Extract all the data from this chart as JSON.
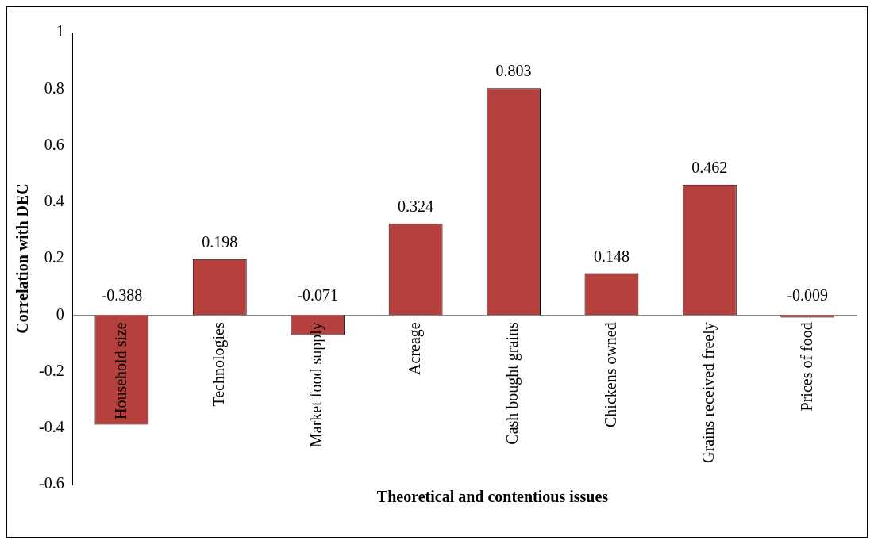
{
  "chart_data": {
    "type": "bar",
    "xlabel": "Theoretical and contentious issues",
    "ylabel": "Correlation with DEC",
    "categories": [
      "Household size",
      "Technologies",
      "Market food supply",
      "Acreage",
      "Cash bought grains",
      "Chickens owned",
      "Grains received freely",
      "Prices of food"
    ],
    "values": [
      -0.388,
      0.198,
      -0.071,
      0.324,
      0.803,
      0.148,
      0.462,
      -0.009
    ],
    "color": "#b5403d",
    "ylim": [
      -0.6,
      1
    ],
    "yticks": [
      -0.6,
      -0.4,
      -0.2,
      0,
      0.2,
      0.4,
      0.6,
      0.8,
      1
    ],
    "grid": false,
    "legend": false,
    "data_labels": true
  }
}
